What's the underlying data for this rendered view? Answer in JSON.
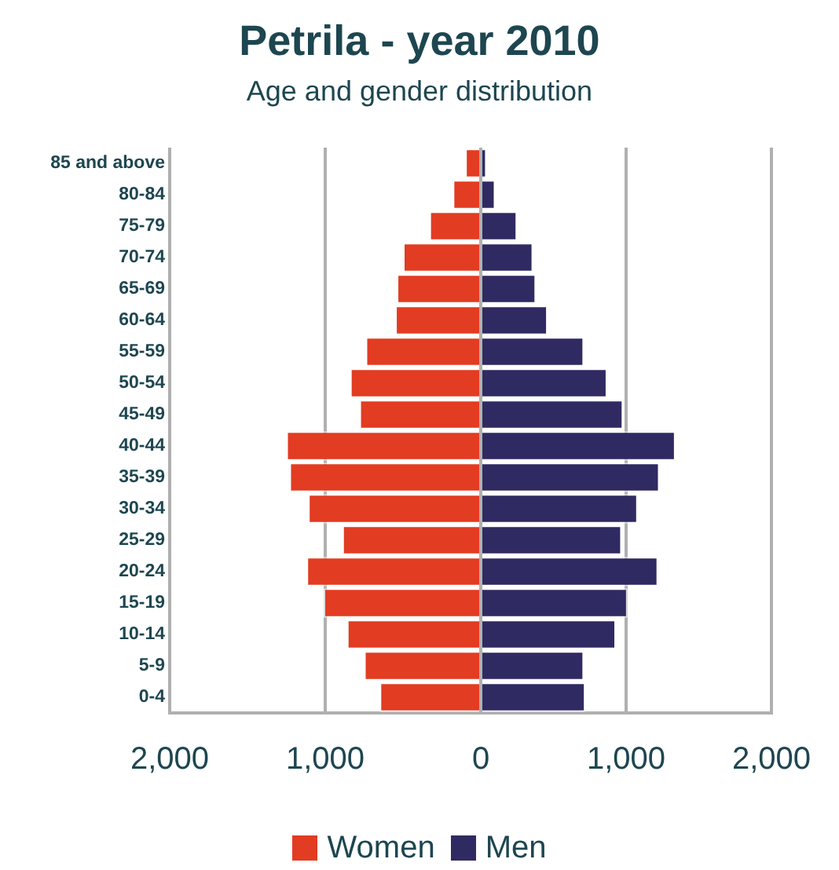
{
  "chart_data": [
    {
      "type": "bar",
      "orientation": "horizontal",
      "title": "Petrila - year 2010",
      "subtitle": "Age and gender distribution",
      "categories": [
        "85 and above",
        "80-84",
        "75-79",
        "70-74",
        "65-69",
        "60-64",
        "55-59",
        "50-54",
        "45-49",
        "40-44",
        "35-39",
        "30-34",
        "25-29",
        "20-24",
        "15-19",
        "10-14",
        "5-9",
        "0-4"
      ],
      "series": [
        {
          "name": "Women",
          "color": "#e23c22",
          "values": [
            100,
            180,
            330,
            500,
            540,
            550,
            740,
            840,
            780,
            1250,
            1230,
            1110,
            890,
            1120,
            1010,
            860,
            750,
            650
          ]
        }
      ],
      "xlim": [
        2000,
        0
      ],
      "xticks": [
        {
          "value": 2000,
          "label": "2,000"
        },
        {
          "value": 1000,
          "label": "1,000"
        },
        0
      ],
      "grid": "x",
      "legend": "bottom"
    },
    {
      "type": "bar",
      "orientation": "horizontal",
      "categories": [
        null,
        null,
        null,
        null,
        null,
        null,
        null,
        null,
        null,
        null,
        null,
        null,
        null,
        null,
        null,
        null,
        null,
        null
      ],
      "series": [
        {
          "name": "Men",
          "color": "#302a62",
          "values": [
            40,
            100,
            250,
            360,
            380,
            460,
            710,
            870,
            980,
            1340,
            1230,
            1080,
            970,
            1220,
            1010,
            930,
            710,
            720
          ]
        }
      ],
      "xlim": [
        0,
        2000
      ],
      "xticks": [
        {
          "value": 0,
          "label": null
        },
        {
          "value": 1000,
          "label": "1,000"
        },
        {
          "value": 2000,
          "label": "2,000"
        }
      ],
      "grid": "x",
      "legend": "bottom",
      "tick_labels": "x"
    }
  ]
}
